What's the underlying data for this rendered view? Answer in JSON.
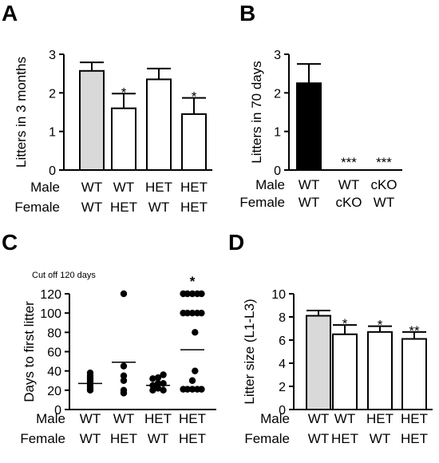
{
  "chart_data": [
    {
      "panel": "A",
      "type": "bar",
      "ylabel": "Litters in 3 months",
      "ylim": [
        0,
        3
      ],
      "yticks": [
        "0",
        "1",
        "2",
        "3"
      ],
      "row_labels": [
        "Male",
        "Female"
      ],
      "categories": [
        {
          "male": "WT",
          "female": "WT"
        },
        {
          "male": "WT",
          "female": "HET"
        },
        {
          "male": "HET",
          "female": "WT"
        },
        {
          "male": "HET",
          "female": "HET"
        }
      ],
      "values": [
        2.57,
        1.6,
        2.35,
        1.45
      ],
      "errors": [
        0.22,
        0.38,
        0.28,
        0.42
      ],
      "significance": [
        "",
        "*",
        "",
        "*"
      ],
      "fills": [
        "#d9d9d9",
        "#ffffff",
        "#ffffff",
        "#ffffff"
      ]
    },
    {
      "panel": "B",
      "type": "bar",
      "ylabel": "Litters in 70 days",
      "ylim": [
        0,
        3
      ],
      "yticks": [
        "0",
        "1",
        "2",
        "3"
      ],
      "row_labels": [
        "Male",
        "Female"
      ],
      "categories": [
        {
          "male": "WT",
          "female": "WT"
        },
        {
          "male": "WT",
          "female": "cKO"
        },
        {
          "male": "cKO",
          "female": "WT"
        }
      ],
      "values": [
        2.25,
        0,
        0
      ],
      "errors": [
        0.5,
        0,
        0
      ],
      "significance": [
        "",
        "***",
        "***"
      ],
      "fills": [
        "#000000",
        "#ffffff",
        "#ffffff"
      ]
    },
    {
      "panel": "C",
      "type": "scatter",
      "note": "Cut off 120 days",
      "ylabel": "Days to first litter",
      "ylim": [
        0,
        120
      ],
      "yticks": [
        "0",
        "20",
        "40",
        "60",
        "80",
        "100",
        "120"
      ],
      "row_labels": [
        "Male",
        "Female"
      ],
      "categories": [
        {
          "male": "WT",
          "female": "WT"
        },
        {
          "male": "WT",
          "female": "HET"
        },
        {
          "male": "HET",
          "female": "WT"
        },
        {
          "male": "HET",
          "female": "HET"
        }
      ],
      "points": [
        [
          [
            0,
            20
          ],
          [
            0,
            21
          ],
          [
            0,
            23
          ],
          [
            0,
            25
          ],
          [
            0,
            27
          ],
          [
            0,
            29
          ],
          [
            0,
            31
          ],
          [
            0,
            33
          ],
          [
            0,
            35
          ],
          [
            0,
            38
          ]
        ],
        [
          [
            0,
            120
          ],
          [
            0,
            45
          ],
          [
            0,
            35
          ],
          [
            0,
            30
          ],
          [
            0,
            20
          ],
          [
            0,
            17
          ]
        ],
        [
          [
            -0.3,
            20
          ],
          [
            0,
            22
          ],
          [
            0.3,
            20
          ],
          [
            -0.3,
            25
          ],
          [
            0,
            27
          ],
          [
            0.3,
            27
          ],
          [
            -0.3,
            32
          ],
          [
            0,
            33
          ],
          [
            0.3,
            36
          ]
        ],
        [
          [
            -0.52,
            120
          ],
          [
            -0.28,
            120
          ],
          [
            0,
            120
          ],
          [
            0.28,
            120
          ],
          [
            0.52,
            120
          ],
          [
            -0.52,
            100
          ],
          [
            -0.28,
            100
          ],
          [
            0,
            100
          ],
          [
            0.28,
            100
          ],
          [
            0.52,
            100
          ],
          [
            0.15,
            80
          ],
          [
            0.15,
            40
          ],
          [
            0,
            30
          ],
          [
            -0.52,
            21
          ],
          [
            -0.28,
            21
          ],
          [
            0,
            21
          ],
          [
            0.28,
            21
          ],
          [
            0.52,
            21
          ]
        ]
      ],
      "means": [
        27,
        49,
        25,
        62
      ],
      "significance": [
        "",
        "",
        "",
        "*"
      ]
    },
    {
      "panel": "D",
      "type": "bar",
      "ylabel": "Litter size (L1-L3)",
      "ylim": [
        0,
        10
      ],
      "yticks": [
        "0",
        "2",
        "4",
        "6",
        "8",
        "10"
      ],
      "row_labels": [
        "Male",
        "Female"
      ],
      "categories": [
        {
          "male": "WT",
          "female": "WT"
        },
        {
          "male": "WT",
          "female": "HET"
        },
        {
          "male": "HET",
          "female": "WT"
        },
        {
          "male": "HET",
          "female": "HET"
        }
      ],
      "values": [
        8.1,
        6.5,
        6.7,
        6.1
      ],
      "errors": [
        0.45,
        0.8,
        0.5,
        0.6
      ],
      "significance": [
        "",
        "*",
        "*",
        "**"
      ],
      "fills": [
        "#d9d9d9",
        "#ffffff",
        "#ffffff",
        "#ffffff"
      ]
    }
  ]
}
